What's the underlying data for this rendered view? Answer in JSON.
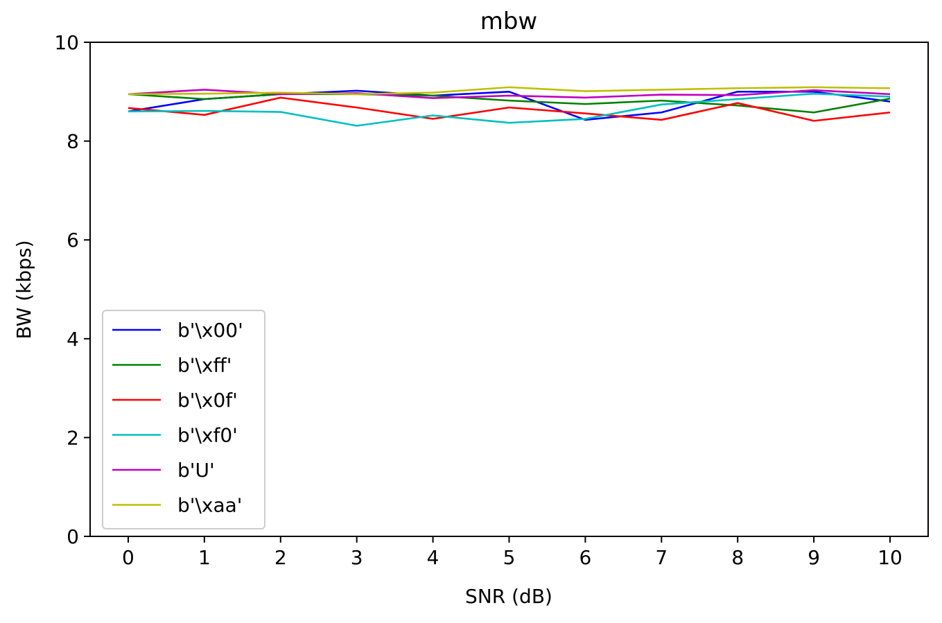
{
  "chart_data": {
    "type": "line",
    "title": "mbw",
    "xlabel": "SNR (dB)",
    "ylabel": "BW (kbps)",
    "x": [
      0,
      1,
      2,
      3,
      4,
      5,
      6,
      7,
      8,
      9,
      10
    ],
    "xlim": [
      -0.5,
      10.5
    ],
    "ylim": [
      0,
      10
    ],
    "xticks": [
      "0",
      "1",
      "2",
      "3",
      "4",
      "5",
      "6",
      "7",
      "8",
      "9",
      "10"
    ],
    "yticks": [
      "0",
      "2",
      "4",
      "6",
      "8",
      "10"
    ],
    "grid": false,
    "legend_position": "lower-left",
    "series": [
      {
        "name": "b'\\x00'",
        "color": "#0000ff",
        "values": [
          8.6,
          8.85,
          8.95,
          9.02,
          8.92,
          9.0,
          8.43,
          8.58,
          9.0,
          9.0,
          8.8
        ]
      },
      {
        "name": "b'\\xff'",
        "color": "#008000",
        "values": [
          8.95,
          8.85,
          8.95,
          8.95,
          8.92,
          8.82,
          8.75,
          8.82,
          8.72,
          8.58,
          8.86
        ]
      },
      {
        "name": "b'\\x0f'",
        "color": "#ff0000",
        "values": [
          8.67,
          8.53,
          8.88,
          8.68,
          8.45,
          8.68,
          8.56,
          8.43,
          8.77,
          8.41,
          8.58
        ]
      },
      {
        "name": "b'\\xf0'",
        "color": "#00bfbf",
        "values": [
          8.6,
          8.61,
          8.59,
          8.31,
          8.52,
          8.37,
          8.45,
          8.74,
          8.85,
          8.96,
          8.9
        ]
      },
      {
        "name": "b'U'",
        "color": "#bf00bf",
        "values": [
          8.95,
          9.04,
          8.95,
          8.97,
          8.87,
          8.92,
          8.88,
          8.94,
          8.93,
          9.03,
          8.95
        ]
      },
      {
        "name": "b'\\xaa'",
        "color": "#bfbf00",
        "values": [
          8.95,
          8.96,
          8.98,
          8.95,
          8.98,
          9.09,
          9.01,
          9.04,
          9.07,
          9.09,
          9.07
        ]
      }
    ]
  }
}
